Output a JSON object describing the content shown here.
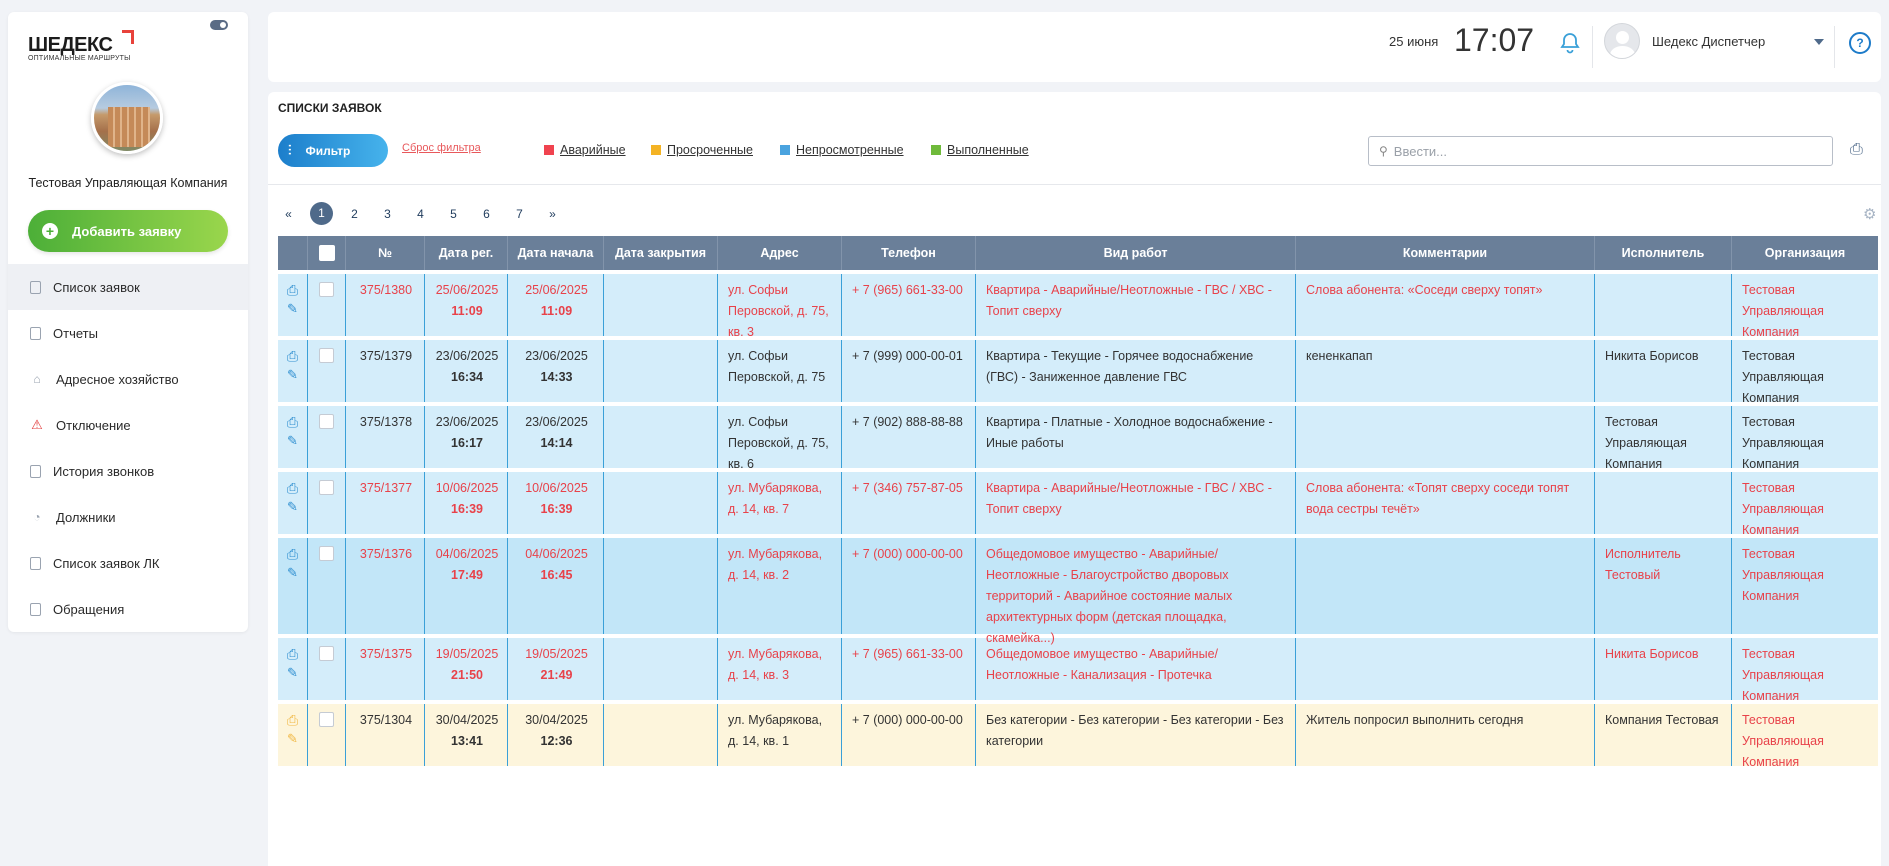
{
  "sidebar": {
    "logo_main": "ШЕДЕКС",
    "logo_sub": "ОПТИМАЛЬНЫЕ МАРШРУТЫ",
    "company": "Тестовая Управляющая Компания",
    "add_button": "Добавить заявку",
    "items": [
      {
        "label": "Список заявок",
        "icon": "document-icon"
      },
      {
        "label": "Отчеты",
        "icon": "report-icon"
      },
      {
        "label": "Адресное хозяйство",
        "icon": "home-icon"
      },
      {
        "label": "Отключение",
        "icon": "warning-icon"
      },
      {
        "label": "История звонков",
        "icon": "call-history-icon"
      },
      {
        "label": "Должники",
        "icon": "debtor-icon"
      },
      {
        "label": "Список заявок ЛК",
        "icon": "document-icon"
      },
      {
        "label": "Обращения",
        "icon": "document-icon"
      }
    ]
  },
  "header": {
    "date": "25 июня",
    "time": "17:07",
    "user": "Шедекс Диспетчер"
  },
  "main": {
    "title": "СПИСКИ ЗАЯВОК",
    "filter_button": "Фильтр",
    "reset_filter": "Сброс фильтра",
    "legend": [
      {
        "label": "Аварийные",
        "color": "#f0434f"
      },
      {
        "label": "Просроченные",
        "color": "#f4b324"
      },
      {
        "label": "Непросмотренные",
        "color": "#4aa3df"
      },
      {
        "label": "Выполненные",
        "color": "#6fba3b"
      }
    ],
    "search_placeholder": "Ввести...",
    "pager": {
      "prev": "«",
      "pages": [
        "1",
        "2",
        "3",
        "4",
        "5",
        "6",
        "7"
      ],
      "next": "»",
      "current": "1"
    }
  },
  "table": {
    "headers": [
      "№",
      "Дата рег.",
      "Дата начала",
      "Дата закрытия",
      "Адрес",
      "Телефон",
      "Вид работ",
      "Комментарии",
      "Исполнитель",
      "Организация"
    ],
    "rows": [
      {
        "num": "375/1380",
        "reg_date": "25/06/2025",
        "reg_time": "11:09",
        "start_date": "25/06/2025",
        "start_time": "11:09",
        "close": "",
        "addr": "ул. Софьи Перовской, д. 75, кв. 3",
        "tel": "+ 7 (965) 661-33-00",
        "kind": "Квартира - Аварийные/Неотложные - ГВС / ХВС - Топит сверху",
        "comment": "Слова абонента: «Соседи сверху топят»",
        "exec": "",
        "org": "Тестовая Управляющая Компания",
        "status": "emergency"
      },
      {
        "num": "375/1379",
        "reg_date": "23/06/2025",
        "reg_time": "16:34",
        "start_date": "23/06/2025",
        "start_time": "14:33",
        "close": "",
        "addr": "ул. Софьи Перовской, д. 75",
        "tel": "+ 7 (999) 000-00-01",
        "kind": "Квартира - Текущие - Горячее водоснабжение (ГВС) - Заниженное давление ГВС",
        "comment": "кененкапап",
        "exec": "Никита Борисов",
        "org": "Тестовая Управляющая Компания",
        "status": "unviewed"
      },
      {
        "num": "375/1378",
        "reg_date": "23/06/2025",
        "reg_time": "16:17",
        "start_date": "23/06/2025",
        "start_time": "14:14",
        "close": "",
        "addr": "ул. Софьи Перовской, д. 75, кв. 6",
        "tel": "+ 7 (902) 888-88-88",
        "kind": "Квартира - Платные - Холодное водоснабжение - Иные работы",
        "comment": "",
        "exec": "Тестовая Управляющая Компания",
        "org": "Тестовая Управляющая Компания",
        "status": "unviewed"
      },
      {
        "num": "375/1377",
        "reg_date": "10/06/2025",
        "reg_time": "16:39",
        "start_date": "10/06/2025",
        "start_time": "16:39",
        "close": "",
        "addr": "ул. Мубарякова, д. 14, кв. 7",
        "tel": "+ 7 (346) 757-87-05",
        "kind": "Квартира - Аварийные/Неотложные - ГВС / ХВС - Топит сверху",
        "comment": "Слова абонента: «Топят сверху соседи топят вода сестры течёт»",
        "exec": "",
        "org": "Тестовая Управляющая Компания",
        "status": "emergency"
      },
      {
        "num": "375/1376",
        "reg_date": "04/06/2025",
        "reg_time": "17:49",
        "start_date": "04/06/2025",
        "start_time": "16:45",
        "close": "",
        "addr": "ул. Мубарякова, д. 14, кв. 2",
        "tel": "+ 7 (000) 000-00-00",
        "kind": "Общедомовое имущество - Аварийные/ Неотложные - Благоустройство дворовых территорий - Аварийное состояние малых архитектурных форм (детская площадка, скамейка...)",
        "comment": "",
        "exec": "Исполнитель Тестовый",
        "org": "Тестовая Управляющая Компания",
        "status": "emergency"
      },
      {
        "num": "375/1375",
        "reg_date": "19/05/2025",
        "reg_time": "21:50",
        "start_date": "19/05/2025",
        "start_time": "21:49",
        "close": "",
        "addr": "ул. Мубарякова, д. 14, кв. 3",
        "tel": "+ 7 (965) 661-33-00",
        "kind": "Общедомовое имущество - Аварийные/ Неотложные - Канализация - Протечка",
        "comment": "",
        "exec": "Никита Борисов",
        "org": "Тестовая Управляющая Компания",
        "status": "emergency"
      },
      {
        "num": "375/1304",
        "reg_date": "30/04/2025",
        "reg_time": "13:41",
        "start_date": "30/04/2025",
        "start_time": "12:36",
        "close": "",
        "addr": "ул. Мубарякова, д. 14, кв. 1",
        "tel": "+ 7 (000) 000-00-00",
        "kind": "Без категории - Без категории - Без категории - Без категории",
        "comment": "Житель попросил выполнить сегодня",
        "exec": "Компания Тестовая",
        "org": "Тестовая Управляющая Компания",
        "status": "overdue"
      }
    ]
  }
}
